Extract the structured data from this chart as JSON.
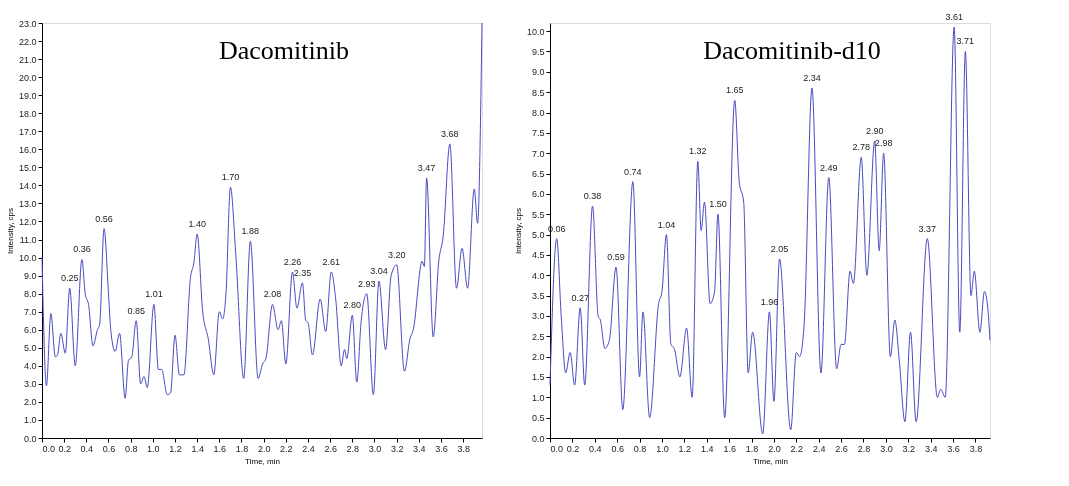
{
  "chart_data": [
    {
      "type": "line",
      "title": "Dacomitinib",
      "xlabel": "Time, min",
      "ylabel": "Intensity, cps",
      "grid": false,
      "marker": "none",
      "line_style": "solid",
      "x": [
        0.0,
        0.04,
        0.08,
        0.12,
        0.14,
        0.17,
        0.21,
        0.25,
        0.3,
        0.36,
        0.39,
        0.42,
        0.46,
        0.5,
        0.52,
        0.56,
        0.6,
        0.62,
        0.66,
        0.7,
        0.75,
        0.78,
        0.81,
        0.85,
        0.89,
        0.92,
        0.95,
        1.01,
        1.05,
        1.08,
        1.13,
        1.16,
        1.2,
        1.24,
        1.28,
        1.34,
        1.37,
        1.4,
        1.45,
        1.5,
        1.55,
        1.6,
        1.63,
        1.66,
        1.7,
        1.75,
        1.82,
        1.88,
        1.95,
        1.99,
        2.02,
        2.08,
        2.13,
        2.16,
        2.2,
        2.26,
        2.3,
        2.35,
        2.38,
        2.4,
        2.44,
        2.51,
        2.56,
        2.61,
        2.65,
        2.7,
        2.73,
        2.75,
        2.8,
        2.84,
        2.88,
        2.93,
        2.99,
        3.04,
        3.1,
        3.15,
        3.2,
        3.27,
        3.32,
        3.35,
        3.43,
        3.45,
        3.47,
        3.53,
        3.58,
        3.62,
        3.68,
        3.74,
        3.79,
        3.84,
        3.9,
        3.93,
        3.97
      ],
      "series": [
        {
          "color": "#4a4ac4",
          "values": [
            10.0,
            2.9,
            6.9,
            4.5,
            4.6,
            5.8,
            4.7,
            8.3,
            4.0,
            9.9,
            8.0,
            7.4,
            5.1,
            6.0,
            6.3,
            11.6,
            8.0,
            6.0,
            4.8,
            5.8,
            2.2,
            4.3,
            4.5,
            6.5,
            3.0,
            3.4,
            2.8,
            7.4,
            3.8,
            3.8,
            2.4,
            2.5,
            5.7,
            3.5,
            3.5,
            8.9,
            9.7,
            11.3,
            7.0,
            5.5,
            3.5,
            7.0,
            6.6,
            8.0,
            13.9,
            10.0,
            3.3,
            10.9,
            3.3,
            4.1,
            4.4,
            7.4,
            6.0,
            6.5,
            4.1,
            9.2,
            7.2,
            8.6,
            6.5,
            6.4,
            4.6,
            7.7,
            5.9,
            9.2,
            7.7,
            4.0,
            4.9,
            4.4,
            6.8,
            3.1,
            6.5,
            8.0,
            2.4,
            8.7,
            4.9,
            9.0,
            9.6,
            3.7,
            5.5,
            6.0,
            9.8,
            9.5,
            14.4,
            5.6,
            9.8,
            11.2,
            16.3,
            8.3,
            10.5,
            8.3,
            13.8,
            11.9,
            23.0
          ]
        }
      ],
      "xlim": [
        0,
        3.97
      ],
      "xticks": [
        {
          "value": 0,
          "label": "0.0"
        },
        {
          "value": 0.2,
          "label": "0.2"
        },
        {
          "value": 0.4,
          "label": "0.4"
        },
        {
          "value": 0.6,
          "label": "0.6"
        },
        {
          "value": 0.8,
          "label": "0.8"
        },
        {
          "value": 1,
          "label": "1.0"
        },
        {
          "value": 1.2,
          "label": "1.2"
        },
        {
          "value": 1.4,
          "label": "1.4"
        },
        {
          "value": 1.6,
          "label": "1.6"
        },
        {
          "value": 1.8,
          "label": "1.8"
        },
        {
          "value": 2,
          "label": "2.0"
        },
        {
          "value": 2.2,
          "label": "2.2"
        },
        {
          "value": 2.4,
          "label": "2.4"
        },
        {
          "value": 2.6,
          "label": "2.6"
        },
        {
          "value": 2.8,
          "label": "2.8"
        },
        {
          "value": 3,
          "label": "3.0"
        },
        {
          "value": 3.2,
          "label": "3.2"
        },
        {
          "value": 3.4,
          "label": "3.4"
        },
        {
          "value": 3.6,
          "label": "3.6"
        },
        {
          "value": 3.8,
          "label": "3.8"
        }
      ],
      "ylim": [
        0,
        23
      ],
      "yticks": [
        {
          "value": 0,
          "label": "0.0"
        },
        {
          "value": 1,
          "label": "1.0"
        },
        {
          "value": 2,
          "label": "2.0"
        },
        {
          "value": 3,
          "label": "3.0"
        },
        {
          "value": 4,
          "label": "4.0"
        },
        {
          "value": 5,
          "label": "5.0"
        },
        {
          "value": 6,
          "label": "6.0"
        },
        {
          "value": 7,
          "label": "7.0"
        },
        {
          "value": 8,
          "label": "8.0"
        },
        {
          "value": 9,
          "label": "9.0"
        },
        {
          "value": 10,
          "label": "10.0"
        },
        {
          "value": 11,
          "label": "11.0"
        },
        {
          "value": 12,
          "label": "12.0"
        },
        {
          "value": 13,
          "label": "13.0"
        },
        {
          "value": 14,
          "label": "14.0"
        },
        {
          "value": 15,
          "label": "15.0"
        },
        {
          "value": 16,
          "label": "16.0"
        },
        {
          "value": 17,
          "label": "17.0"
        },
        {
          "value": 18,
          "label": "18.0"
        },
        {
          "value": 19,
          "label": "19.0"
        },
        {
          "value": 20,
          "label": "20.0"
        },
        {
          "value": 21,
          "label": "21.0"
        },
        {
          "value": 22,
          "label": "22.0"
        },
        {
          "value": 23,
          "label": "23.0"
        }
      ],
      "annotations": [
        {
          "text": "0.25",
          "x": 0.25,
          "y": 8.3
        },
        {
          "text": "0.36",
          "x": 0.36,
          "y": 9.9
        },
        {
          "text": "0.56",
          "x": 0.56,
          "y": 11.6
        },
        {
          "text": "0.85",
          "x": 0.85,
          "y": 6.5
        },
        {
          "text": "1.01",
          "x": 1.01,
          "y": 7.4
        },
        {
          "text": "1.40",
          "x": 1.4,
          "y": 11.3
        },
        {
          "text": "1.70",
          "x": 1.7,
          "y": 13.9
        },
        {
          "text": "1.88",
          "x": 1.88,
          "y": 10.9
        },
        {
          "text": "2.08",
          "x": 2.08,
          "y": 7.4
        },
        {
          "text": "2.26",
          "x": 2.26,
          "y": 9.2
        },
        {
          "text": "2.35",
          "x": 2.35,
          "y": 8.6
        },
        {
          "text": "2.61",
          "x": 2.61,
          "y": 9.2
        },
        {
          "text": "2.80",
          "x": 2.8,
          "y": 6.8
        },
        {
          "text": "2.93",
          "x": 2.93,
          "y": 8.0
        },
        {
          "text": "3.04",
          "x": 3.04,
          "y": 8.7
        },
        {
          "text": "3.20",
          "x": 3.2,
          "y": 9.6
        },
        {
          "text": "3.47",
          "x": 3.47,
          "y": 14.4
        },
        {
          "text": "3.68",
          "x": 3.68,
          "y": 16.3
        }
      ]
    },
    {
      "type": "line",
      "title": "Dacomitinib-d10",
      "xlabel": "Time, min",
      "ylabel": "Intensity, cps",
      "grid": false,
      "marker": "none",
      "line_style": "solid",
      "x": [
        0.0,
        0.06,
        0.1,
        0.14,
        0.18,
        0.22,
        0.27,
        0.31,
        0.38,
        0.43,
        0.45,
        0.49,
        0.53,
        0.59,
        0.65,
        0.74,
        0.8,
        0.83,
        0.89,
        0.97,
        1.0,
        1.04,
        1.08,
        1.11,
        1.16,
        1.22,
        1.27,
        1.32,
        1.35,
        1.38,
        1.43,
        1.47,
        1.5,
        1.56,
        1.65,
        1.69,
        1.73,
        1.77,
        1.81,
        1.9,
        1.96,
        2.0,
        2.05,
        2.15,
        2.2,
        2.23,
        2.27,
        2.34,
        2.42,
        2.49,
        2.56,
        2.6,
        2.63,
        2.68,
        2.71,
        2.78,
        2.83,
        2.9,
        2.94,
        2.98,
        3.04,
        3.08,
        3.12,
        3.17,
        3.22,
        3.27,
        3.37,
        3.46,
        3.49,
        3.53,
        3.61,
        3.66,
        3.71,
        3.76,
        3.79,
        3.84,
        3.88,
        3.91,
        3.93
      ],
      "series": [
        {
          "color": "#4a4ac4",
          "values": [
            1.3,
            4.9,
            3.0,
            1.6,
            2.1,
            1.3,
            3.2,
            1.3,
            5.7,
            3.0,
            2.9,
            2.2,
            2.4,
            4.2,
            0.7,
            6.3,
            1.5,
            3.1,
            0.5,
            3.3,
            3.6,
            5.0,
            2.3,
            2.2,
            1.5,
            2.7,
            1.0,
            6.8,
            5.1,
            5.8,
            3.3,
            3.6,
            5.5,
            0.5,
            8.3,
            6.3,
            5.8,
            1.6,
            2.6,
            0.1,
            3.1,
            0.9,
            4.4,
            0.2,
            2.1,
            2.0,
            2.8,
            8.6,
            1.6,
            6.4,
            1.7,
            2.3,
            2.3,
            4.1,
            3.8,
            6.9,
            4.0,
            7.3,
            4.6,
            7.0,
            2.0,
            2.9,
            1.9,
            0.4,
            2.6,
            0.4,
            4.9,
            1.0,
            1.2,
            1.0,
            10.1,
            2.6,
            9.5,
            3.5,
            4.1,
            2.6,
            3.6,
            3.2,
            2.4
          ]
        }
      ],
      "xlim": [
        0,
        3.93
      ],
      "xticks": [
        {
          "value": 0,
          "label": "0.0"
        },
        {
          "value": 0.2,
          "label": "0.2"
        },
        {
          "value": 0.4,
          "label": "0.4"
        },
        {
          "value": 0.6,
          "label": "0.6"
        },
        {
          "value": 0.8,
          "label": "0.8"
        },
        {
          "value": 1,
          "label": "1.0"
        },
        {
          "value": 1.2,
          "label": "1.2"
        },
        {
          "value": 1.4,
          "label": "1.4"
        },
        {
          "value": 1.6,
          "label": "1.6"
        },
        {
          "value": 1.8,
          "label": "1.8"
        },
        {
          "value": 2,
          "label": "2.0"
        },
        {
          "value": 2.2,
          "label": "2.2"
        },
        {
          "value": 2.4,
          "label": "2.4"
        },
        {
          "value": 2.6,
          "label": "2.6"
        },
        {
          "value": 2.8,
          "label": "2.8"
        },
        {
          "value": 3,
          "label": "3.0"
        },
        {
          "value": 3.2,
          "label": "3.2"
        },
        {
          "value": 3.4,
          "label": "3.4"
        },
        {
          "value": 3.6,
          "label": "3.6"
        },
        {
          "value": 3.8,
          "label": "3.8"
        }
      ],
      "ylim": [
        0,
        10.2
      ],
      "yticks": [
        {
          "value": 0,
          "label": "0.0"
        },
        0.5,
        {
          "value": 1,
          "label": "1.0"
        },
        1.5,
        {
          "value": 2,
          "label": "2.0"
        },
        2.5,
        {
          "value": 3,
          "label": "3.0"
        },
        3.5,
        {
          "value": 4,
          "label": "4.0"
        },
        4.5,
        {
          "value": 5,
          "label": "5.0"
        },
        5.5,
        {
          "value": 6,
          "label": "6.0"
        },
        6.5,
        {
          "value": 7,
          "label": "7.0"
        },
        7.5,
        {
          "value": 8,
          "label": "8.0"
        },
        8.5,
        {
          "value": 9,
          "label": "9.0"
        },
        9.5,
        {
          "value": 10,
          "label": "10.0"
        }
      ],
      "annotations": [
        {
          "text": "0.06",
          "x": 0.06,
          "y": 4.9
        },
        {
          "text": "0.27",
          "x": 0.27,
          "y": 3.2
        },
        {
          "text": "0.38",
          "x": 0.38,
          "y": 5.7
        },
        {
          "text": "0.59",
          "x": 0.59,
          "y": 4.2
        },
        {
          "text": "0.74",
          "x": 0.74,
          "y": 6.3
        },
        {
          "text": "1.04",
          "x": 1.04,
          "y": 5.0
        },
        {
          "text": "1.32",
          "x": 1.32,
          "y": 6.8
        },
        {
          "text": "1.50",
          "x": 1.5,
          "y": 5.5
        },
        {
          "text": "1.65",
          "x": 1.65,
          "y": 8.3
        },
        {
          "text": "1.96",
          "x": 1.96,
          "y": 3.1
        },
        {
          "text": "2.05",
          "x": 2.05,
          "y": 4.4
        },
        {
          "text": "2.34",
          "x": 2.34,
          "y": 8.6
        },
        {
          "text": "2.49",
          "x": 2.49,
          "y": 6.4
        },
        {
          "text": "2.78",
          "x": 2.78,
          "y": 6.9
        },
        {
          "text": "2.90",
          "x": 2.9,
          "y": 7.3
        },
        {
          "text": "2.98",
          "x": 2.98,
          "y": 7.0
        },
        {
          "text": "3.37",
          "x": 3.37,
          "y": 4.9
        },
        {
          "text": "3.61",
          "x": 3.61,
          "y": 10.1
        },
        {
          "text": "3.71",
          "x": 3.71,
          "y": 9.5
        }
      ]
    }
  ]
}
